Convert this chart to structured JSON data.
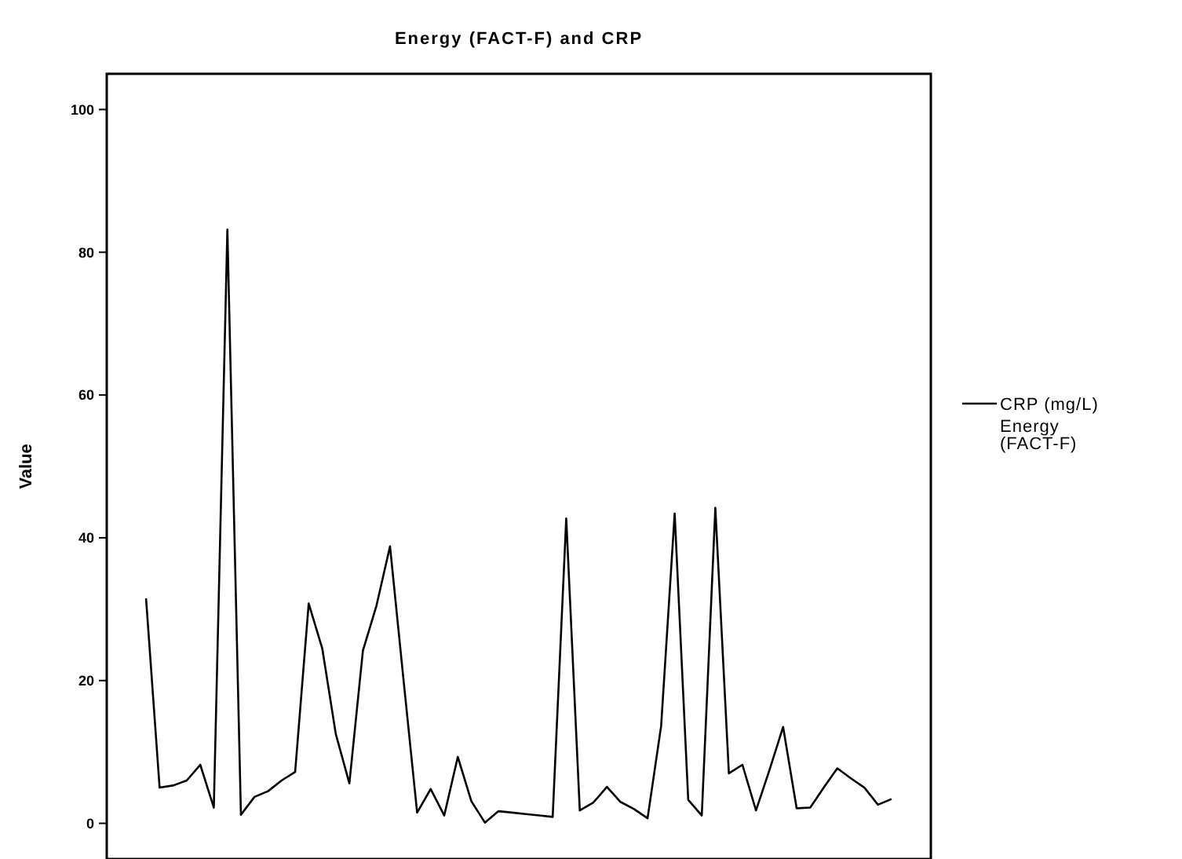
{
  "chart_data": {
    "type": "line",
    "title": "Energy (FACT-F) and CRP",
    "ylabel": "Value",
    "categories": [
      null,
      null,
      null,
      null,
      null,
      null,
      null,
      null,
      null,
      null,
      null,
      null,
      null,
      null,
      null,
      null,
      null,
      null,
      null,
      null,
      null,
      null,
      null,
      null,
      null,
      null,
      null,
      null,
      null,
      null,
      null,
      null,
      null,
      null,
      null,
      null,
      null,
      null,
      null,
      null,
      null,
      null,
      null,
      null,
      null,
      null,
      null,
      null,
      null,
      null,
      null,
      null,
      null,
      null,
      null,
      null
    ],
    "series": [
      {
        "name": "CRP (mg/L)",
        "color": "#000000",
        "values": [
          31.5,
          5.0,
          5.3,
          6.0,
          8.2,
          2.2,
          83.2,
          1.2,
          3.7,
          4.5,
          6.0,
          7.2,
          30.8,
          24.5,
          12.5,
          5.6,
          24.2,
          30.5,
          38.8,
          20,
          1.5,
          4.8,
          1.1,
          9.3,
          3.1,
          0.1,
          1.7,
          1.5,
          1.3,
          1.1,
          0.9,
          42.7,
          1.8,
          2.9,
          5.1,
          3.0,
          2.0,
          0.7,
          13.6,
          43.4,
          3.3,
          1.1,
          44.2,
          7.0,
          8.2,
          1.8,
          7.5,
          13.5,
          2.1,
          2.2,
          5.0,
          7.7,
          6.3,
          5.0,
          2.6,
          3.4
        ]
      },
      {
        "name": "Energy (FACT-F)",
        "values": [
          null,
          null,
          null,
          null,
          null,
          null,
          null,
          null,
          null,
          null,
          null,
          null,
          null,
          null,
          null,
          null,
          null,
          null,
          null,
          null,
          null,
          null,
          null,
          null,
          null,
          null,
          null,
          null,
          null,
          null,
          null,
          null,
          null,
          null,
          null,
          null,
          null,
          null,
          null,
          null,
          null,
          null,
          null,
          null,
          null,
          null,
          null,
          null,
          null,
          null,
          null,
          null,
          null,
          null,
          null,
          null
        ]
      }
    ],
    "ylim": [
      -5,
      105
    ],
    "yticks": [
      0,
      20,
      40,
      60,
      80,
      100
    ],
    "tick_labels": "y",
    "grid": false,
    "legend": "right",
    "marker": "none",
    "line_style": "solid"
  }
}
